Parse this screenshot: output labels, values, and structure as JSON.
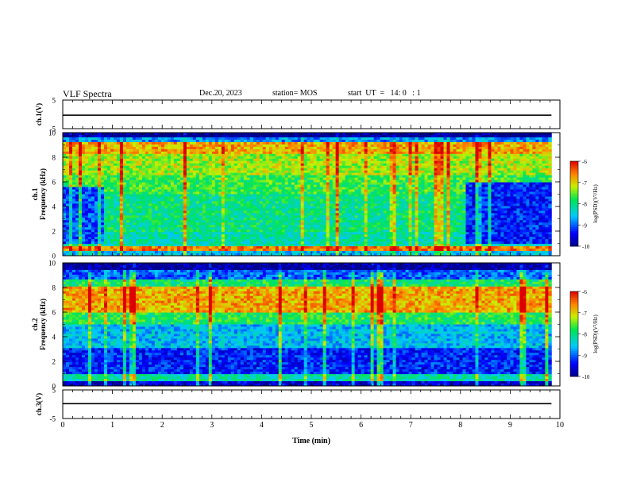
{
  "header": {
    "title": "VLF Spectra",
    "date": "Dec.20, 2023",
    "station": "station= MOS",
    "start_ut": "start  UT  =   14: 0   : 1"
  },
  "chart_data": [
    {
      "panel": "ch1-waveform",
      "type": "line",
      "ylabel": "ch.1(V)",
      "ylim": [
        -5,
        5
      ],
      "yticks": [
        5,
        -5
      ],
      "x_range_min": [
        0,
        9.83
      ],
      "y_level": -0.3
    },
    {
      "panel": "ch1-spectrogram",
      "type": "heatmap",
      "ylabel": "ch.1\nFrequency (kHz)",
      "ylim": [
        0,
        10
      ],
      "yticks": [
        0,
        2,
        4,
        6,
        8,
        10
      ],
      "x_range_min": [
        0,
        9.83
      ],
      "colorbar": {
        "label": "log(PSD)(V²/Hz)",
        "ticks": [
          -6,
          -7,
          -8,
          -9,
          -10
        ],
        "range": [
          -10,
          -6
        ]
      },
      "bands_khz": [
        {
          "from": 9.6,
          "to": 10.0,
          "level": -10.0
        },
        {
          "from": 9.3,
          "to": 9.6,
          "level": -8.8
        },
        {
          "from": 8.2,
          "to": 9.3,
          "level": -6.8
        },
        {
          "from": 6.5,
          "to": 8.2,
          "level": -7.3
        },
        {
          "from": 5.0,
          "to": 6.5,
          "level": -7.7
        },
        {
          "from": 2.0,
          "to": 5.0,
          "level": -8.0
        },
        {
          "from": 0.8,
          "to": 2.0,
          "level": -8.2
        },
        {
          "from": 0.3,
          "to": 0.8,
          "level": -6.6
        },
        {
          "from": 0.0,
          "to": 0.3,
          "level": -8.6
        }
      ],
      "quiet_regions": [
        {
          "t": [
            0.0,
            0.8
          ],
          "f": [
            1.0,
            5.5
          ],
          "level": -9.1
        },
        {
          "t": [
            8.1,
            9.83
          ],
          "f": [
            1.0,
            6.0
          ],
          "level": -9.3
        }
      ]
    },
    {
      "panel": "ch2-spectrogram",
      "type": "heatmap",
      "ylabel": "ch.2\nFrequency (kHz)",
      "ylim": [
        0,
        10
      ],
      "yticks": [
        0,
        2,
        4,
        6,
        8,
        10
      ],
      "x_range_min": [
        0,
        9.83
      ],
      "colorbar": {
        "label": "log(PSD)(V²/Hz)",
        "ticks": [
          -6,
          -7,
          -8,
          -9,
          -10
        ],
        "range": [
          -10,
          -6
        ]
      },
      "bands_khz": [
        {
          "from": 9.4,
          "to": 10.0,
          "level": -9.9
        },
        {
          "from": 8.7,
          "to": 9.4,
          "level": -9.0
        },
        {
          "from": 8.0,
          "to": 8.7,
          "level": -7.9
        },
        {
          "from": 6.0,
          "to": 8.0,
          "level": -6.8
        },
        {
          "from": 5.0,
          "to": 6.0,
          "level": -7.8
        },
        {
          "from": 3.0,
          "to": 5.0,
          "level": -8.6
        },
        {
          "from": 1.0,
          "to": 3.0,
          "level": -9.3
        },
        {
          "from": 0.4,
          "to": 1.0,
          "level": -8.2
        },
        {
          "from": 0.0,
          "to": 0.4,
          "level": -9.6
        }
      ],
      "quiet_regions": []
    },
    {
      "panel": "ch3-waveform",
      "type": "line",
      "ylabel": "ch.3(V)",
      "ylim": [
        -5,
        5
      ],
      "yticks": [
        5,
        -5
      ],
      "x_range_min": [
        0,
        9.83
      ],
      "y_level": 0.2
    }
  ],
  "xaxis": {
    "label": "Time  (min)",
    "xlim": [
      0,
      10
    ],
    "ticks": [
      "0",
      "1",
      "2",
      "3",
      "4",
      "5",
      "6",
      "7",
      "8",
      "9",
      "10"
    ]
  }
}
